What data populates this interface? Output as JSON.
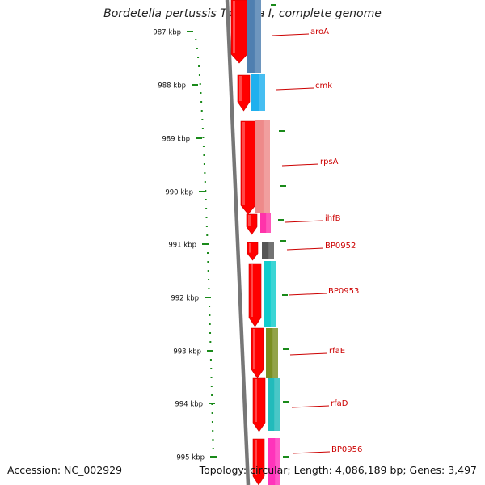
{
  "title": "Bordetella pertussis Tohama I, complete genome",
  "footer": {
    "accession": "Accession: NC_002929",
    "summary": "Topology: circular; Length: 4,086,189 bp; Genes: 3,497"
  },
  "ruler": {
    "ticks": [
      "987 kbp",
      "988 kbp",
      "989 kbp",
      "990 kbp",
      "991 kbp",
      "992 kbp",
      "993 kbp",
      "994 kbp",
      "995 kbp"
    ],
    "tick_color": "#1a8a1a"
  },
  "genes": [
    {
      "label": "aroA",
      "color": "#4f7fb0"
    },
    {
      "label": "cmk",
      "color": "#1fb0ee"
    },
    {
      "label": "rpsA",
      "color": "#ee8a8a"
    },
    {
      "label": "ihfB",
      "color": "#ff33aa"
    },
    {
      "label": "BP0952",
      "color": "#555555"
    },
    {
      "label": "BP0953",
      "color": "#11cccc"
    },
    {
      "label": "rfaE",
      "color": "#7a8f22"
    },
    {
      "label": "rfaD",
      "color": "#22bbbb"
    },
    {
      "label": "BP0956",
      "color": "#ff33bb"
    }
  ],
  "colors": {
    "strand_arrow": "#ff0000",
    "gene_label": "#cc0000",
    "backbone": "#777777"
  }
}
